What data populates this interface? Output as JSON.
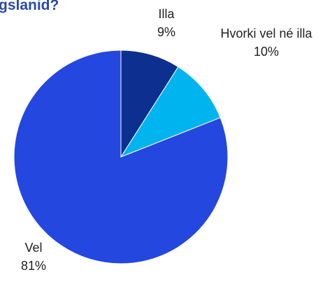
{
  "chart_data": {
    "type": "pie",
    "title": "gslanid?",
    "categories": [
      "Illa",
      "Hvorki vel né illa",
      "Vel"
    ],
    "values": [
      9,
      10,
      81
    ],
    "value_labels": [
      "9%",
      "10%",
      "81%"
    ],
    "colors": [
      "#0d2f8f",
      "#00b4f0",
      "#2447e0"
    ]
  }
}
